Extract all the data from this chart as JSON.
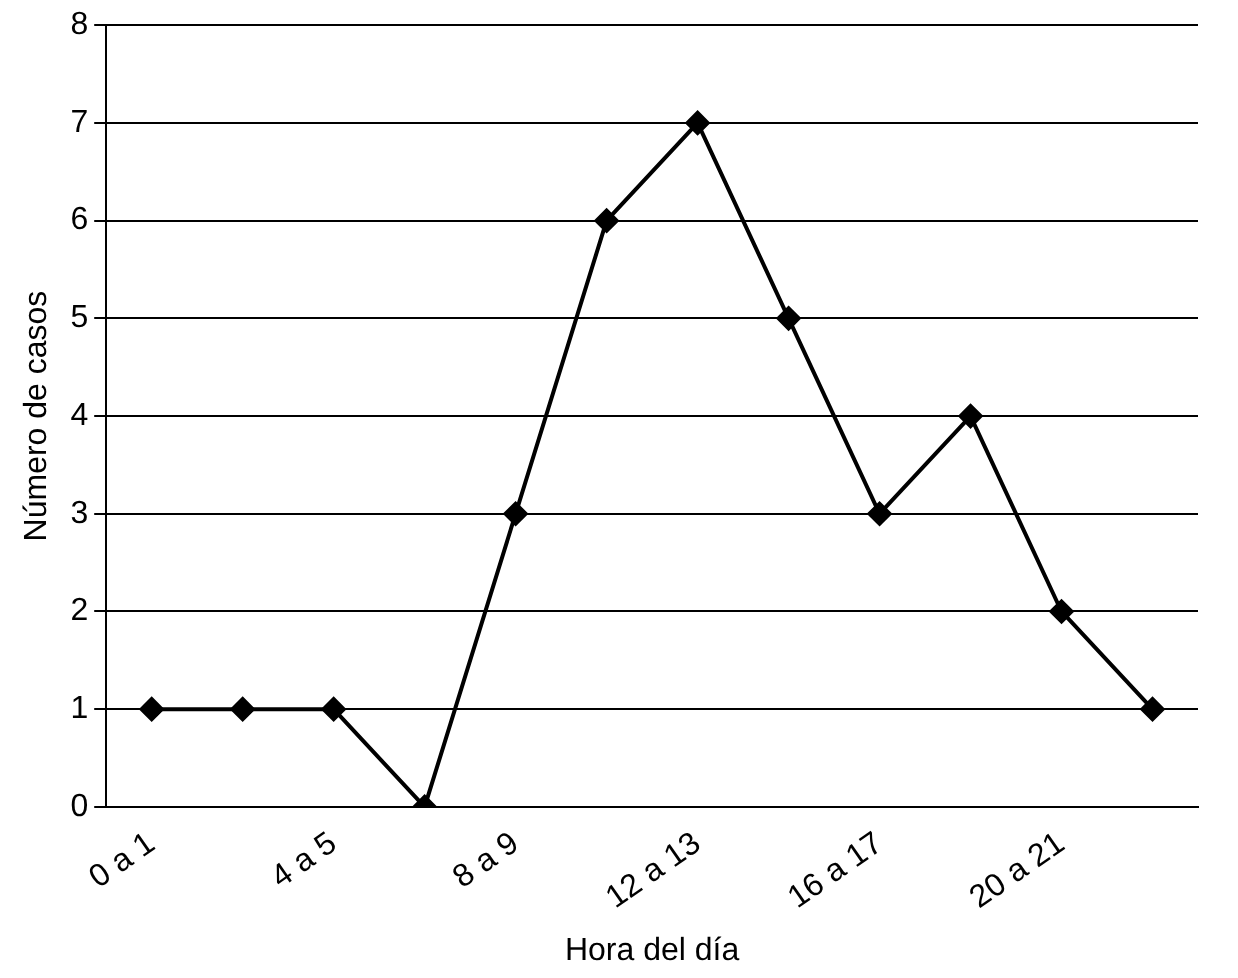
{
  "chart_data": {
    "type": "line",
    "xlabel": "Hora del día",
    "ylabel": "Número de casos",
    "categories": [
      "0 a 1",
      null,
      "4 a 5",
      null,
      "8 a 9",
      null,
      "12 a 13",
      null,
      "16 a 17",
      null,
      "20 a 21",
      null
    ],
    "series": [
      {
        "color": "#000000",
        "values": [
          1,
          1,
          1,
          0,
          3,
          6,
          7,
          5,
          3,
          4,
          2,
          1
        ]
      }
    ],
    "ylim": [
      0,
      8
    ],
    "yticks": [
      0,
      1,
      2,
      3,
      4,
      5,
      6,
      7,
      8
    ],
    "grid": "y",
    "legend": false,
    "marker": "diamond",
    "line_style": "solid"
  }
}
